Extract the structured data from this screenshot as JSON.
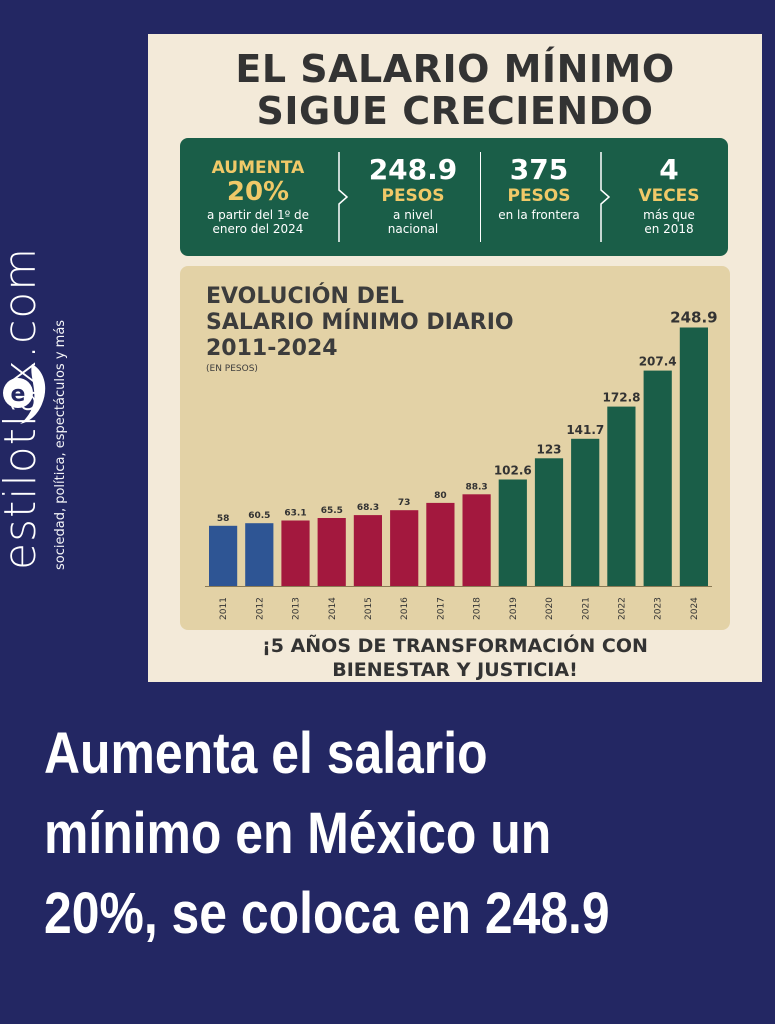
{
  "brand": {
    "name": "estilotlax.com",
    "tagline": "sociedad, política, espectáculos y más",
    "logo_letter": "e"
  },
  "poster": {
    "title_line1": "EL SALARIO MÍNIMO",
    "title_line2": "SIGUE CRECIENDO",
    "facts": [
      {
        "top": "AUMENTA",
        "big": "20%",
        "desc": "a partir del 1º de enero del 2024"
      },
      {
        "big": "248.9",
        "hl": "PESOS",
        "desc": "a nivel nacional"
      },
      {
        "big": "375",
        "hl": "PESOS",
        "desc": "en la frontera"
      },
      {
        "big": "4",
        "hl": "VECES",
        "desc": "más que en 2018"
      }
    ],
    "chart_title_line1": "EVOLUCIÓN DEL",
    "chart_title_line2": "SALARIO MÍNIMO DIARIO",
    "chart_title_line3": "2011-2024",
    "chart_unit": "(EN PESOS)",
    "footer_line1": "¡5 AÑOS DE TRANSFORMACIÓN CON",
    "footer_line2": "BIENESTAR Y JUSTICIA!"
  },
  "headline": {
    "line1": "Aumenta el salario",
    "line2": "mínimo en México un",
    "line3": "20%, se coloca en 248.9"
  },
  "colors": {
    "background": "#232763",
    "poster": "#f3ead9",
    "green": "#1a5e48",
    "blue": "#2e5594",
    "red": "#a3183e",
    "gold": "#f0c968",
    "chart_bg": "#e3d2a6"
  },
  "chart_data": {
    "type": "bar",
    "title": "EVOLUCIÓN DEL SALARIO MÍNIMO DIARIO 2011-2024",
    "unit": "(EN PESOS)",
    "categories": [
      "2011",
      "2012",
      "2013",
      "2014",
      "2015",
      "2016",
      "2017",
      "2018",
      "2019",
      "2020",
      "2021",
      "2022",
      "2023",
      "2024"
    ],
    "values": [
      58,
      60.5,
      63.1,
      65.5,
      68.3,
      73,
      80,
      88.3,
      102.6,
      123,
      141.7,
      172.8,
      207.4,
      248.9
    ],
    "value_labels": [
      "58",
      "60.5",
      "63.1",
      "65.5",
      "68.3",
      "73",
      "80",
      "88.3",
      "102.6",
      "123",
      "141.7",
      "172.8",
      "207.4",
      "248.9"
    ],
    "bar_colors": [
      "#2e5594",
      "#2e5594",
      "#a3183e",
      "#a3183e",
      "#a3183e",
      "#a3183e",
      "#a3183e",
      "#a3183e",
      "#1a5e48",
      "#1a5e48",
      "#1a5e48",
      "#1a5e48",
      "#1a5e48",
      "#1a5e48"
    ],
    "ylim": [
      0,
      260
    ],
    "grid": false,
    "xlabel": "",
    "ylabel": ""
  }
}
